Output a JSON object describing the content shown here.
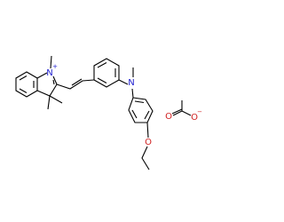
{
  "atoms": [
    {
      "label": "N",
      "charge": "+"
    },
    {
      "label": "N"
    },
    {
      "label": "O"
    },
    {
      "label": "O"
    },
    {
      "label": "O",
      "charge": "−"
    }
  ]
}
